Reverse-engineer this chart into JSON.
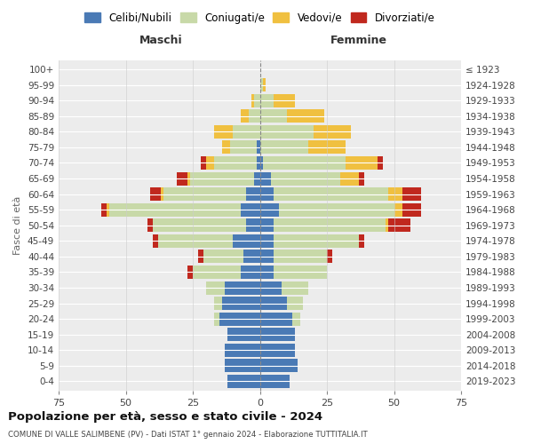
{
  "age_groups": [
    "0-4",
    "5-9",
    "10-14",
    "15-19",
    "20-24",
    "25-29",
    "30-34",
    "35-39",
    "40-44",
    "45-49",
    "50-54",
    "55-59",
    "60-64",
    "65-69",
    "70-74",
    "75-79",
    "80-84",
    "85-89",
    "90-94",
    "95-99",
    "100+"
  ],
  "birth_years": [
    "2019-2023",
    "2014-2018",
    "2009-2013",
    "2004-2008",
    "1999-2003",
    "1994-1998",
    "1989-1993",
    "1984-1988",
    "1979-1983",
    "1974-1978",
    "1969-1973",
    "1964-1968",
    "1959-1963",
    "1954-1958",
    "1949-1953",
    "1944-1948",
    "1939-1943",
    "1934-1938",
    "1929-1933",
    "1924-1928",
    "≤ 1923"
  ],
  "colors": {
    "single": "#4a7ab5",
    "married": "#c8d9a8",
    "widowed": "#f0c040",
    "divorced": "#c0281e"
  },
  "males": {
    "single": [
      12,
      13,
      13,
      12,
      15,
      14,
      13,
      7,
      6,
      10,
      5,
      7,
      5,
      2,
      1,
      1,
      0,
      0,
      0,
      0,
      0
    ],
    "married": [
      0,
      0,
      0,
      0,
      2,
      3,
      7,
      18,
      15,
      28,
      35,
      49,
      31,
      24,
      16,
      10,
      10,
      4,
      2,
      0,
      0
    ],
    "widowed": [
      0,
      0,
      0,
      0,
      0,
      0,
      0,
      0,
      0,
      0,
      0,
      1,
      1,
      1,
      3,
      3,
      7,
      3,
      1,
      0,
      0
    ],
    "divorced": [
      0,
      0,
      0,
      0,
      0,
      0,
      0,
      2,
      2,
      2,
      2,
      2,
      4,
      4,
      2,
      0,
      0,
      0,
      0,
      0,
      0
    ]
  },
  "females": {
    "single": [
      11,
      14,
      13,
      13,
      12,
      10,
      8,
      5,
      5,
      5,
      5,
      7,
      5,
      4,
      1,
      0,
      0,
      0,
      0,
      0,
      0
    ],
    "married": [
      0,
      0,
      0,
      0,
      3,
      6,
      10,
      20,
      20,
      32,
      42,
      43,
      43,
      26,
      31,
      18,
      20,
      10,
      5,
      1,
      0
    ],
    "widowed": [
      0,
      0,
      0,
      0,
      0,
      0,
      0,
      0,
      0,
      0,
      1,
      3,
      5,
      7,
      12,
      14,
      14,
      14,
      8,
      1,
      0
    ],
    "divorced": [
      0,
      0,
      0,
      0,
      0,
      0,
      0,
      0,
      2,
      2,
      8,
      7,
      7,
      2,
      2,
      0,
      0,
      0,
      0,
      0,
      0
    ]
  },
  "title_main": "Popolazione per età, sesso e stato civile - 2024",
  "title_sub": "COMUNE DI VALLE SALIMBENE (PV) - Dati ISTAT 1° gennaio 2024 - Elaborazione TUTTITALIA.IT",
  "xlabel_left": "Maschi",
  "xlabel_right": "Femmine",
  "ylabel_left": "Fasce di età",
  "xlim": 75,
  "legend_labels": [
    "Celibi/Nubili",
    "Coniugati/e",
    "Vedovi/e",
    "Divorziati/e"
  ],
  "background_color": "#ffffff",
  "plot_bg_color": "#ececec",
  "grid_color": "#ffffff"
}
